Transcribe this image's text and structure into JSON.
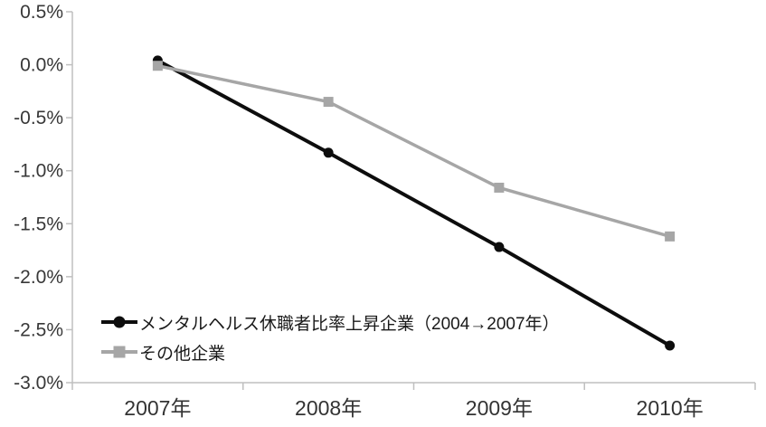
{
  "chart_data": {
    "type": "line",
    "title": "",
    "xlabel": "",
    "ylabel": "",
    "unit": "%",
    "categories": [
      "2007年",
      "2008年",
      "2009年",
      "2010年"
    ],
    "series": [
      {
        "name": "メンタルヘルス休職者比率上昇企業（2004→2007年）",
        "values": [
          0.04,
          -0.83,
          -1.72,
          -2.65
        ],
        "color": "#0d0d0d",
        "marker": "circle"
      },
      {
        "name": "その他企業",
        "values": [
          -0.01,
          -0.35,
          -1.16,
          -1.62
        ],
        "color": "#a6a6a6",
        "marker": "square"
      }
    ],
    "y_ticks": [
      "0.5%",
      "0.0%",
      "-0.5%",
      "-1.0%",
      "-1.5%",
      "-2.0%",
      "-2.5%",
      "-3.0%"
    ],
    "ylim": [
      -3.0,
      0.5
    ],
    "y_step": 0.5,
    "grid": false,
    "legend_position": "inside-bottom-left",
    "axis_color": "#bfbfbf",
    "tick_label_color": "#383838",
    "background_color": "#ffffff"
  }
}
